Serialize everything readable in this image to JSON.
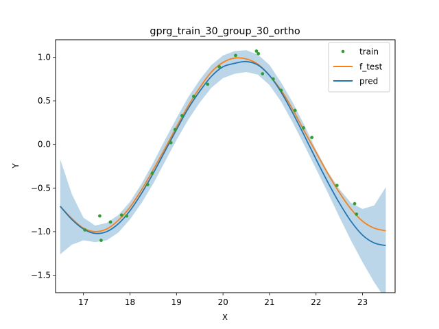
{
  "chart_data": {
    "type": "line",
    "title": "gprg_train_30_group_30_ortho",
    "xlabel": "X",
    "ylabel": "Y",
    "xlim": [
      16.4,
      23.7
    ],
    "ylim": [
      -1.7,
      1.2
    ],
    "xticks": [
      17,
      18,
      19,
      20,
      21,
      22,
      23
    ],
    "xtick_labels": [
      "17",
      "18",
      "19",
      "20",
      "21",
      "22",
      "23"
    ],
    "yticks": [
      -1.5,
      -1.0,
      -0.5,
      0.0,
      0.5,
      1.0
    ],
    "ytick_labels": [
      "−1.5",
      "−1.0",
      "−0.5",
      "0.0",
      "0.5",
      "1.0"
    ],
    "grid": false,
    "legend_position": "top-right",
    "colors": {
      "train": "#2ca02c",
      "f_test": "#ff7f0e",
      "pred": "#1f77b4",
      "band": "#1f77b4"
    },
    "series": [
      {
        "name": "train",
        "kind": "scatter",
        "x": [
          17.03,
          17.35,
          17.38,
          17.58,
          17.82,
          17.93,
          18.38,
          18.48,
          18.88,
          18.97,
          19.12,
          19.37,
          19.67,
          19.92,
          20.27,
          20.72,
          20.76,
          20.85,
          21.08,
          21.25,
          21.55,
          21.73,
          21.91,
          22.45,
          22.83,
          22.87
        ],
        "y": [
          -0.98,
          -0.82,
          -1.1,
          -0.89,
          -0.81,
          -0.82,
          -0.46,
          -0.33,
          0.02,
          0.17,
          0.33,
          0.55,
          0.69,
          0.89,
          1.02,
          1.07,
          1.04,
          0.81,
          0.75,
          0.62,
          0.39,
          0.19,
          0.08,
          -0.47,
          -0.68,
          -0.8
        ]
      },
      {
        "name": "f_test",
        "kind": "line",
        "x": [
          16.5,
          16.75,
          17.0,
          17.25,
          17.5,
          17.75,
          18.0,
          18.25,
          18.5,
          18.75,
          19.0,
          19.25,
          19.5,
          19.75,
          20.0,
          20.25,
          20.5,
          20.75,
          21.0,
          21.25,
          21.5,
          21.75,
          22.0,
          22.25,
          22.5,
          22.75,
          23.0,
          23.25,
          23.5
        ],
        "y": [
          -0.71,
          -0.85,
          -0.96,
          -1.0,
          -0.97,
          -0.87,
          -0.72,
          -0.52,
          -0.29,
          -0.05,
          0.2,
          0.44,
          0.65,
          0.83,
          0.94,
          0.99,
          0.98,
          0.92,
          0.79,
          0.62,
          0.4,
          0.15,
          -0.09,
          -0.33,
          -0.55,
          -0.74,
          -0.88,
          -0.96,
          -0.99
        ]
      },
      {
        "name": "pred",
        "kind": "line",
        "x": [
          16.5,
          16.75,
          17.0,
          17.25,
          17.5,
          17.75,
          18.0,
          18.25,
          18.5,
          18.75,
          19.0,
          19.25,
          19.5,
          19.75,
          20.0,
          20.25,
          20.5,
          20.75,
          21.0,
          21.25,
          21.5,
          21.75,
          22.0,
          22.25,
          22.5,
          22.75,
          23.0,
          23.25,
          23.5
        ],
        "y": [
          -0.71,
          -0.86,
          -0.97,
          -1.02,
          -1.0,
          -0.91,
          -0.76,
          -0.56,
          -0.33,
          -0.08,
          0.17,
          0.41,
          0.61,
          0.78,
          0.89,
          0.93,
          0.95,
          0.91,
          0.79,
          0.6,
          0.36,
          0.1,
          -0.17,
          -0.43,
          -0.67,
          -0.88,
          -1.04,
          -1.13,
          -1.16
        ]
      },
      {
        "kind": "band",
        "x": [
          16.5,
          16.75,
          17.0,
          17.25,
          17.5,
          17.75,
          18.0,
          18.25,
          18.5,
          18.75,
          19.0,
          19.25,
          19.5,
          19.75,
          20.0,
          20.25,
          20.5,
          20.75,
          21.0,
          21.25,
          21.5,
          21.75,
          22.0,
          22.25,
          22.5,
          22.75,
          23.0,
          23.25,
          23.5
        ],
        "lower": [
          -1.26,
          -1.15,
          -1.1,
          -1.12,
          -1.1,
          -1.01,
          -0.86,
          -0.67,
          -0.45,
          -0.2,
          0.05,
          0.28,
          0.48,
          0.65,
          0.76,
          0.81,
          0.83,
          0.8,
          0.68,
          0.49,
          0.25,
          -0.01,
          -0.28,
          -0.55,
          -0.83,
          -1.1,
          -1.35,
          -1.58,
          -1.78
        ],
        "upper": [
          -0.17,
          -0.57,
          -0.84,
          -0.93,
          -0.9,
          -0.81,
          -0.66,
          -0.45,
          -0.21,
          0.05,
          0.3,
          0.54,
          0.74,
          0.91,
          1.02,
          1.07,
          1.08,
          1.03,
          0.91,
          0.71,
          0.48,
          0.22,
          -0.06,
          -0.31,
          -0.51,
          -0.67,
          -0.74,
          -0.7,
          -0.49
        ]
      }
    ]
  }
}
